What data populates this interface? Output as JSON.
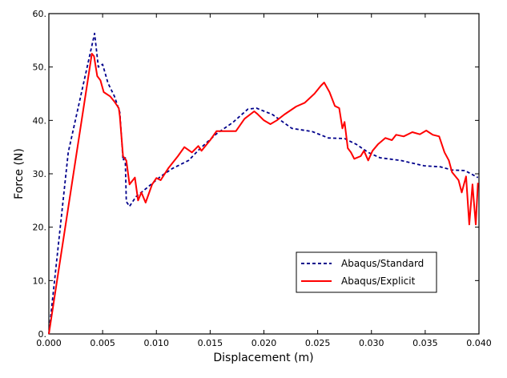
{
  "chart_data": {
    "type": "line",
    "title": "",
    "xlabel": "Displacement (m)",
    "ylabel": "Force (N)",
    "xlim": [
      0,
      0.04
    ],
    "ylim": [
      0,
      60
    ],
    "xticks": [
      "0.000",
      "0.005",
      "0.010",
      "0.015",
      "0.020",
      "0.025",
      "0.030",
      "0.035",
      "0.040"
    ],
    "yticks": [
      "0.",
      "10.",
      "20.",
      "30.",
      "40.",
      "50.",
      "60."
    ],
    "xtick_values": [
      0,
      0.005,
      0.01,
      0.015,
      0.02,
      0.025,
      0.03,
      0.035,
      0.04
    ],
    "ytick_values": [
      0,
      10,
      20,
      30,
      40,
      50,
      60
    ],
    "grid": false,
    "legend_position": "bottom-right",
    "series": [
      {
        "name": "Abaqus/Standard",
        "color": "#00008b",
        "style": "dashed",
        "x": [
          0,
          0.0018,
          0.00425,
          0.0046,
          0.005,
          0.0055,
          0.0061,
          0.0066,
          0.0069,
          0.0071,
          0.0072,
          0.0075,
          0.0081,
          0.0089,
          0.0104,
          0.0115,
          0.013,
          0.0141,
          0.0156,
          0.0171,
          0.0185,
          0.0193,
          0.0208,
          0.0226,
          0.0245,
          0.026,
          0.0275,
          0.0286,
          0.0297,
          0.0308,
          0.0327,
          0.0349,
          0.0364,
          0.0375,
          0.0387,
          0.0399
        ],
        "y": [
          0,
          34,
          56.3,
          50,
          50.5,
          47,
          44.5,
          41.5,
          32.5,
          33.3,
          24.8,
          23.9,
          25.7,
          27,
          29.5,
          31,
          32.5,
          34.8,
          37.5,
          39.6,
          42.1,
          42.3,
          41.1,
          38.5,
          37.9,
          36.7,
          36.6,
          35.5,
          34,
          33,
          32.5,
          31.5,
          31.3,
          30.7,
          30.6,
          29.3
        ]
      },
      {
        "name": "Abaqus/Explicit",
        "color": "#ff0000",
        "style": "solid",
        "x": [
          0,
          0.004,
          0.0042,
          0.0045,
          0.0048,
          0.0051,
          0.0057,
          0.0061,
          0.0065,
          0.0066,
          0.0069,
          0.0072,
          0.0075,
          0.008,
          0.0083,
          0.0086,
          0.009,
          0.0096,
          0.01,
          0.0104,
          0.0111,
          0.012,
          0.0126,
          0.0133,
          0.0139,
          0.0142,
          0.015,
          0.0156,
          0.0167,
          0.0174,
          0.0182,
          0.0191,
          0.0194,
          0.02,
          0.0206,
          0.0212,
          0.0219,
          0.023,
          0.0238,
          0.0247,
          0.0253,
          0.0256,
          0.0261,
          0.0266,
          0.027,
          0.0273,
          0.0275,
          0.0278,
          0.0281,
          0.0284,
          0.029,
          0.0293,
          0.0297,
          0.0301,
          0.0306,
          0.0313,
          0.0319,
          0.0323,
          0.033,
          0.0338,
          0.0345,
          0.0351,
          0.0357,
          0.0363,
          0.0368,
          0.0372,
          0.0375,
          0.0381,
          0.0384,
          0.0388,
          0.0391,
          0.0394,
          0.0397,
          0.0399
        ],
        "y": [
          0,
          52.5,
          52,
          48.3,
          47.5,
          45.3,
          44.5,
          43.5,
          42.3,
          40.8,
          33.3,
          32.5,
          28,
          29.3,
          25,
          26.5,
          24.6,
          28,
          29.2,
          28.8,
          31,
          33.3,
          35,
          34,
          35.2,
          34.3,
          36.3,
          38,
          38,
          38,
          40.3,
          41.7,
          41.2,
          40,
          39.3,
          40,
          41.1,
          42.6,
          43.3,
          45,
          46.5,
          47.1,
          45.3,
          42.7,
          42.3,
          38.5,
          39.7,
          34.8,
          34,
          32.8,
          33.3,
          34.3,
          32.5,
          34.3,
          35.5,
          36.7,
          36.3,
          37.3,
          37,
          37.8,
          37.4,
          38.1,
          37.3,
          37,
          34,
          32.5,
          30.3,
          28.8,
          26.5,
          29.5,
          20.5,
          28,
          20.5,
          28.3
        ]
      }
    ]
  }
}
